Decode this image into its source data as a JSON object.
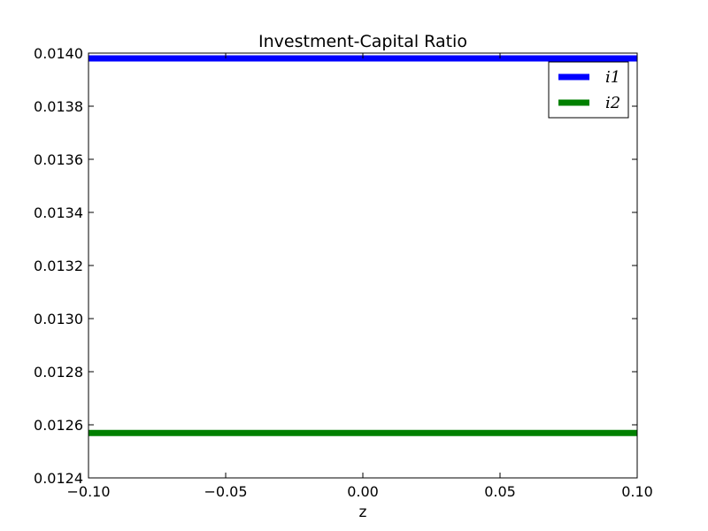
{
  "chart_data": {
    "type": "line",
    "title": "Investment-Capital Ratio",
    "xlabel": "z",
    "ylabel": "",
    "xlim": [
      -0.1,
      0.1
    ],
    "ylim": [
      0.0124,
      0.014
    ],
    "x_ticks": [
      -0.1,
      -0.05,
      0.0,
      0.05,
      0.1
    ],
    "x_tick_labels": [
      "−0.10",
      "−0.05",
      "0.00",
      "0.05",
      "0.10"
    ],
    "y_ticks": [
      0.0124,
      0.0126,
      0.0128,
      0.013,
      0.0132,
      0.0134,
      0.0136,
      0.0138,
      0.014
    ],
    "y_tick_labels": [
      "0.0124",
      "0.0126",
      "0.0128",
      "0.0130",
      "0.0132",
      "0.0134",
      "0.0136",
      "0.0138",
      "0.0140"
    ],
    "grid": false,
    "legend_position": "top-right",
    "series": [
      {
        "name": "i1",
        "color": "#0000ff",
        "x": [
          -0.1,
          0.1
        ],
        "y": [
          0.01398,
          0.01398
        ]
      },
      {
        "name": "i2",
        "color": "#008000",
        "x": [
          -0.1,
          0.1
        ],
        "y": [
          0.012569,
          0.012569
        ]
      }
    ]
  }
}
